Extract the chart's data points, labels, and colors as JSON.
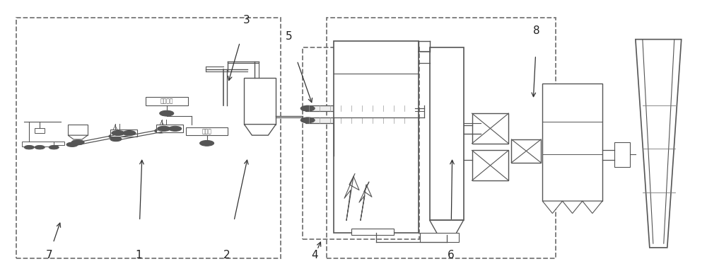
{
  "fig_width": 10.0,
  "fig_height": 3.9,
  "dpi": 100,
  "bg_color": "#ffffff",
  "lc": "#555555",
  "lc_dark": "#333333",
  "label_fs": 11
}
